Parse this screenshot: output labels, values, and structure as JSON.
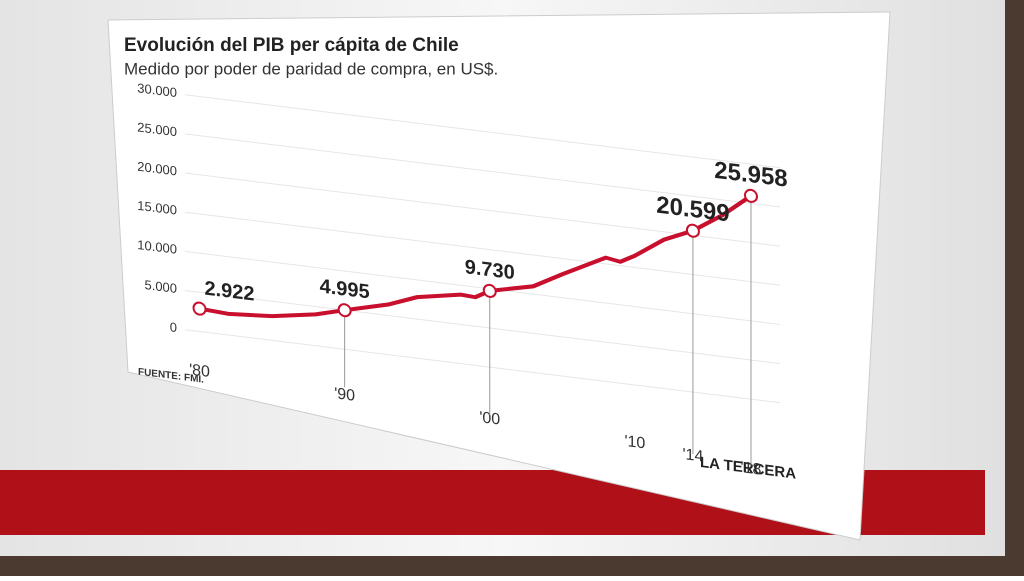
{
  "chart_data": {
    "type": "line",
    "title": "Evolución del PIB per cápita de Chile",
    "subtitle": "Medido por poder de paridad de compra, en US$.",
    "source": "FUENTE: FMI.",
    "publisher": "LA TERCERA",
    "x": [
      1980,
      1982,
      1985,
      1988,
      1990,
      1993,
      1995,
      1998,
      1999,
      2000,
      2003,
      2005,
      2008,
      2009,
      2010,
      2012,
      2014,
      2016,
      2018
    ],
    "series": [
      {
        "name": "PIB per cápita",
        "color": "#c8102e",
        "values": [
          2922,
          2700,
          3100,
          4000,
          4995,
          6400,
          7800,
          8800,
          8700,
          9730,
          11000,
          13000,
          15800,
          15500,
          16500,
          19000,
          20599,
          23000,
          25958
        ],
        "value_labels": [
          "2.922",
          null,
          null,
          null,
          "4.995",
          null,
          null,
          null,
          null,
          "9.730",
          null,
          null,
          null,
          null,
          null,
          null,
          "20.599",
          null,
          "25.958"
        ]
      }
    ],
    "xlim": [
      1979,
      2020
    ],
    "xticks": [
      {
        "value": 1980,
        "label": "'80"
      },
      {
        "value": 1990,
        "label": "'90"
      },
      {
        "value": 2000,
        "label": "'00"
      },
      {
        "value": 2010,
        "label": "'10"
      },
      {
        "value": 2014,
        "label": "'14"
      },
      {
        "value": 2018,
        "label": "'18"
      }
    ],
    "ylim": [
      0,
      30000
    ],
    "yticks": [
      0,
      {
        "value": 5000,
        "label": "5.000"
      },
      {
        "value": 10000,
        "label": "10.000"
      },
      {
        "value": 15000,
        "label": "15.000"
      },
      {
        "value": 20000,
        "label": "20.000"
      },
      {
        "value": 25000,
        "label": "25.000"
      },
      {
        "value": 30000,
        "label": "30.000"
      }
    ],
    "grid": true
  }
}
